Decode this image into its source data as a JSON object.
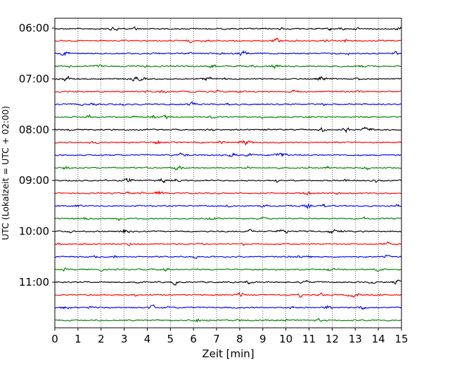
{
  "chart_data": {
    "type": "line",
    "title": "",
    "xlabel": "Zeit  [min]",
    "ylabel": "UTC (Lokalzeit = UTC + 02:00)",
    "xlim": [
      0,
      15
    ],
    "x_ticks": [
      "0",
      "1",
      "2",
      "3",
      "4",
      "5",
      "6",
      "7",
      "8",
      "9",
      "10",
      "11",
      "12",
      "13",
      "14",
      "15"
    ],
    "y_tick_labels": [
      "06:00",
      "07:00",
      "08:00",
      "09:00",
      "10:00",
      "11:00"
    ],
    "trace_interval_minutes": 15,
    "traces_per_hour": 4,
    "trace_count": 24,
    "trace_start_times": [
      "06:00",
      "06:15",
      "06:30",
      "06:45",
      "07:00",
      "07:15",
      "07:30",
      "07:45",
      "08:00",
      "08:15",
      "08:30",
      "08:45",
      "09:00",
      "09:15",
      "09:30",
      "09:45",
      "10:00",
      "10:15",
      "10:30",
      "10:45",
      "11:00",
      "11:15",
      "11:30",
      "11:45"
    ],
    "trace_colors": [
      "#000000",
      "#ff0000",
      "#0000ff",
      "#008000"
    ],
    "grid": "vertical dotted at each minute"
  }
}
